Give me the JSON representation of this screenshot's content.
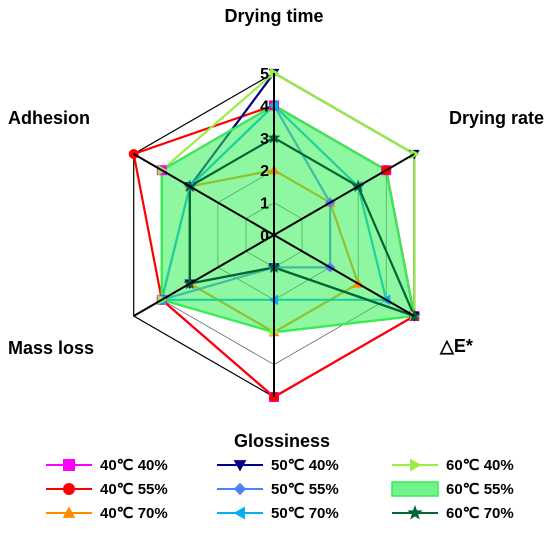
{
  "chart_data": {
    "type": "radar",
    "axes": [
      "Drying time",
      "Drying rate",
      "△E*",
      "Glossiness",
      "Mass loss",
      "Adhesion"
    ],
    "ticks": [
      "0",
      "1",
      "2",
      "3",
      "4",
      "5"
    ],
    "range": [
      0,
      5
    ],
    "series": [
      {
        "name": "40℃ 40%",
        "color": "#ff00ff",
        "marker": "square",
        "values": [
          4,
          4,
          5,
          5,
          4,
          4
        ]
      },
      {
        "name": "40℃ 55%",
        "color": "#ff0000",
        "marker": "circle",
        "values": [
          4,
          4,
          5,
          5,
          4,
          5
        ]
      },
      {
        "name": "40℃ 70%",
        "color": "#ff8c00",
        "marker": "triangle-up",
        "values": [
          2,
          2,
          3,
          3,
          3,
          3
        ]
      },
      {
        "name": "50℃ 40%",
        "color": "#000080",
        "marker": "triangle-down",
        "values": [
          5,
          5,
          5,
          1,
          3,
          3
        ]
      },
      {
        "name": "50℃ 55%",
        "color": "#4f81ff",
        "marker": "diamond",
        "values": [
          4,
          2,
          2,
          1,
          4,
          3
        ]
      },
      {
        "name": "50℃ 70%",
        "color": "#00b0f0",
        "marker": "triangle-left",
        "values": [
          4,
          3,
          4,
          2,
          4,
          3
        ]
      },
      {
        "name": "60℃ 40%",
        "color": "#99ee44",
        "marker": "triangle-right",
        "values": [
          5,
          5,
          5,
          3,
          4,
          4
        ]
      },
      {
        "name": "60℃ 55%",
        "color": "#33ee55",
        "marker": "fill",
        "values": [
          4,
          4,
          5,
          3,
          4,
          4
        ]
      },
      {
        "name": "60℃ 70%",
        "color": "#006633",
        "marker": "star",
        "values": [
          3,
          3,
          5,
          1,
          3,
          3
        ]
      }
    ]
  }
}
